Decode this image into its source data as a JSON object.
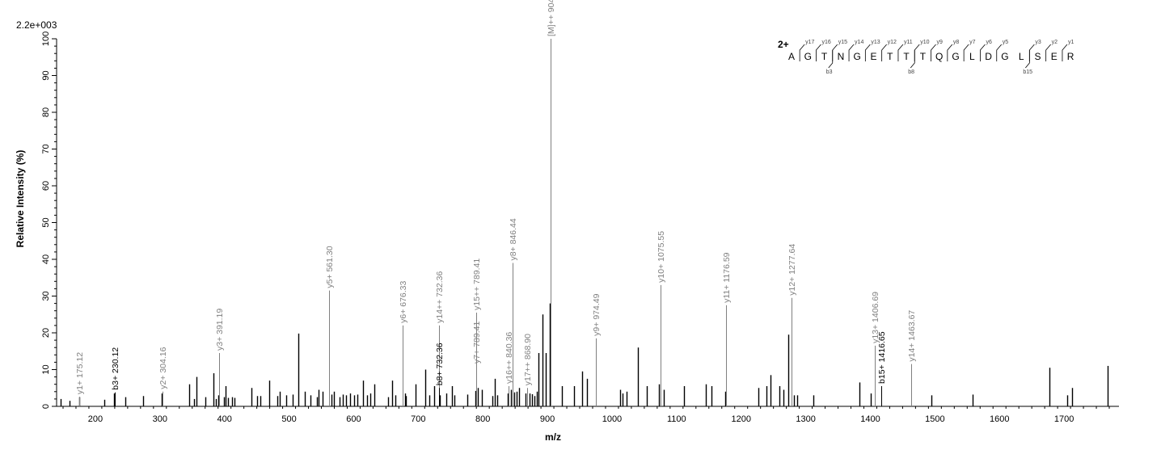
{
  "chart_data": {
    "type": "bar",
    "scale_label": "2.2e+003",
    "xlabel": "m/z",
    "ylabel": "Relative   Intensity (%)",
    "xlim": [
      140,
      1785
    ],
    "ylim": [
      0,
      100
    ],
    "x_ticks": [
      200,
      300,
      400,
      500,
      600,
      700,
      800,
      900,
      1000,
      1100,
      1200,
      1300,
      1400,
      1500,
      1600,
      1700
    ],
    "y_ticks": [
      0,
      10,
      20,
      30,
      40,
      50,
      60,
      70,
      80,
      90,
      100
    ],
    "colors": {
      "unassigned": "#000000",
      "y_ion": "#808080",
      "b_ion": "#000000"
    },
    "annotated_peaks": [
      {
        "mz": 175.12,
        "intensity": 2.6,
        "label": "y1+ 175.12",
        "ion": "y"
      },
      {
        "mz": 230.12,
        "intensity": 3.8,
        "label": "b3+ 230.12",
        "ion": "b"
      },
      {
        "mz": 304.16,
        "intensity": 4.0,
        "label": "y2+ 304.16",
        "ion": "y"
      },
      {
        "mz": 391.19,
        "intensity": 14.5,
        "label": "y3+ 391.19",
        "ion": "y"
      },
      {
        "mz": 561.3,
        "intensity": 31.5,
        "label": "y5+ 561.30",
        "ion": "y"
      },
      {
        "mz": 676.33,
        "intensity": 22.0,
        "label": "y6+ 676.33",
        "ion": "y"
      },
      {
        "mz": 732.36,
        "intensity": 22.0,
        "label": "y14++ 732.36",
        "ion": "y"
      },
      {
        "mz": 732.36,
        "intensity": 5.0,
        "label": "b8+ 732.36",
        "ion": "b"
      },
      {
        "mz": 789.41,
        "intensity": 25.5,
        "label": "y15++ 789.41",
        "ion": "y"
      },
      {
        "mz": 789.41,
        "intensity": 11.0,
        "label": "y7+ 789.41",
        "ion": "y"
      },
      {
        "mz": 840.36,
        "intensity": 5.5,
        "label": "y16++ 840.36",
        "ion": "y"
      },
      {
        "mz": 846.44,
        "intensity": 39.0,
        "label": "y8+ 846.44",
        "ion": "y"
      },
      {
        "mz": 868.9,
        "intensity": 5.0,
        "label": "y17++ 868.90",
        "ion": "y"
      },
      {
        "mz": 904.42,
        "intensity": 100,
        "label": "[M]++ 904.42",
        "ion": "y"
      },
      {
        "mz": 974.49,
        "intensity": 18.5,
        "label": "y9+ 974.49",
        "ion": "y"
      },
      {
        "mz": 1075.55,
        "intensity": 33.0,
        "label": "y10+ 1075.55",
        "ion": "y"
      },
      {
        "mz": 1176.59,
        "intensity": 27.5,
        "label": "y11+ 1176.59",
        "ion": "y"
      },
      {
        "mz": 1277.64,
        "intensity": 29.5,
        "label": "y12+ 1277.64",
        "ion": "y"
      },
      {
        "mz": 1406.69,
        "intensity": 16.5,
        "label": "y13+ 1406.69",
        "ion": "y"
      },
      {
        "mz": 1416.65,
        "intensity": 5.5,
        "label": "b15+ 1416.65",
        "ion": "b"
      },
      {
        "mz": 1463.67,
        "intensity": 11.5,
        "label": "y14+ 1463.67",
        "ion": "y"
      }
    ],
    "peaks": [
      [
        146,
        2
      ],
      [
        160,
        1.5
      ],
      [
        175,
        2.5
      ],
      [
        214,
        1.8
      ],
      [
        229,
        3.5
      ],
      [
        246,
        2.5
      ],
      [
        274,
        2.8
      ],
      [
        303,
        3.5
      ],
      [
        345,
        6
      ],
      [
        353,
        2
      ],
      [
        357,
        8
      ],
      [
        370,
        2.5
      ],
      [
        383,
        9
      ],
      [
        386,
        2
      ],
      [
        390,
        3
      ],
      [
        399,
        2.5
      ],
      [
        402,
        5.5
      ],
      [
        406,
        2.3
      ],
      [
        412,
        2.5
      ],
      [
        416,
        2.3
      ],
      [
        442,
        5
      ],
      [
        451,
        2.8
      ],
      [
        456,
        2.8
      ],
      [
        469,
        7
      ],
      [
        482,
        2.8
      ],
      [
        485,
        4
      ],
      [
        496,
        3
      ],
      [
        506,
        3.2
      ],
      [
        514,
        19.8
      ],
      [
        524,
        4
      ],
      [
        533,
        3
      ],
      [
        543,
        2.5
      ],
      [
        546,
        4.5
      ],
      [
        552,
        4
      ],
      [
        566,
        3.2
      ],
      [
        570,
        4
      ],
      [
        578,
        2.5
      ],
      [
        583,
        3.2
      ],
      [
        588,
        3
      ],
      [
        594,
        3.5
      ],
      [
        601,
        3
      ],
      [
        606,
        3.2
      ],
      [
        614,
        7
      ],
      [
        621,
        3
      ],
      [
        626,
        3.5
      ],
      [
        632,
        6
      ],
      [
        653,
        2.5
      ],
      [
        660,
        7
      ],
      [
        664,
        3
      ],
      [
        679,
        3.5
      ],
      [
        681,
        2.8
      ],
      [
        696,
        6
      ],
      [
        711,
        10
      ],
      [
        717,
        3
      ],
      [
        725,
        5.5
      ],
      [
        733,
        3
      ],
      [
        744,
        3.5
      ],
      [
        752,
        5.5
      ],
      [
        756,
        3
      ],
      [
        776,
        3.2
      ],
      [
        789,
        4.2
      ],
      [
        792,
        5
      ],
      [
        799,
        4.5
      ],
      [
        815,
        2.8
      ],
      [
        818,
        7.5
      ],
      [
        822,
        3
      ],
      [
        838,
        3.5
      ],
      [
        843,
        4.5
      ],
      [
        848,
        3.8
      ],
      [
        852,
        4
      ],
      [
        856,
        5
      ],
      [
        866,
        3.5
      ],
      [
        872,
        3.5
      ],
      [
        876,
        3.3
      ],
      [
        880,
        2.8
      ],
      [
        884,
        4
      ],
      [
        886,
        14.5
      ],
      [
        893,
        25
      ],
      [
        897,
        14.5
      ],
      [
        904,
        28
      ],
      [
        923,
        5.5
      ],
      [
        941,
        5.5
      ],
      [
        954,
        9.5
      ],
      [
        961,
        7.5
      ],
      [
        1012,
        4.5
      ],
      [
        1016,
        3.5
      ],
      [
        1022,
        4
      ],
      [
        1040,
        16
      ],
      [
        1054,
        5.5
      ],
      [
        1073,
        6
      ],
      [
        1080,
        4.5
      ],
      [
        1111,
        5.5
      ],
      [
        1145,
        6
      ],
      [
        1154,
        5.5
      ],
      [
        1175,
        4
      ],
      [
        1227,
        5
      ],
      [
        1239,
        5.5
      ],
      [
        1245,
        8.5
      ],
      [
        1259,
        5.5
      ],
      [
        1266,
        4.5
      ],
      [
        1273,
        19.5
      ],
      [
        1282,
        3
      ],
      [
        1287,
        3
      ],
      [
        1312,
        3
      ],
      [
        1383,
        6.5
      ],
      [
        1401,
        3.5
      ],
      [
        1494,
        3
      ],
      [
        1559,
        3.2
      ],
      [
        1677,
        10.5
      ],
      [
        1705,
        3
      ],
      [
        1713,
        5
      ],
      [
        1767,
        11
      ]
    ],
    "sequence": {
      "charge_label": "2+",
      "residues": [
        "A",
        "G",
        "T",
        "N",
        "G",
        "E",
        "T",
        "T",
        "T",
        "Q",
        "G",
        "L",
        "D",
        "G",
        "L",
        "S",
        "E",
        "R"
      ],
      "y_labels": [
        "",
        "y17",
        "y16",
        "y15",
        "y14",
        "y13",
        "y12",
        "y11",
        "y10",
        "y9",
        "y8",
        "y7",
        "y6",
        "y5",
        "",
        "y3",
        "y2",
        "y1"
      ],
      "b_labels": [
        {
          "after_index": 2,
          "label": "b3"
        },
        {
          "after_index": 7,
          "label": "b8"
        },
        {
          "after_index": 14,
          "label": "b15"
        }
      ]
    }
  }
}
